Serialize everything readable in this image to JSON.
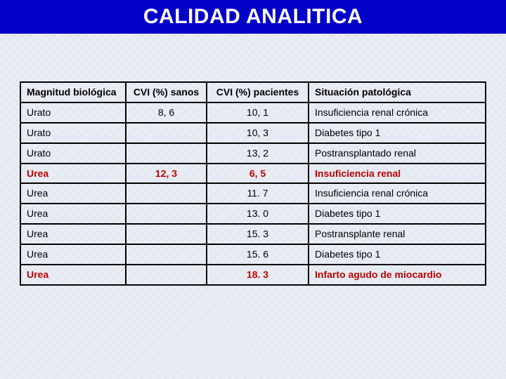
{
  "title": "CALIDAD ANALITICA",
  "table": {
    "columns": [
      "Magnitud biológica",
      "CVI (%)  sanos",
      "CVI (%) pacientes",
      "Situación patológica"
    ],
    "rows": [
      {
        "magnitud": "Urato",
        "sanos": "8, 6",
        "pacientes": "10, 1",
        "situacion": "Insuficiencia renal crónica",
        "highlight": false
      },
      {
        "magnitud": "Urato",
        "sanos": "",
        "pacientes": "10, 3",
        "situacion": "Diabetes tipo 1",
        "highlight": false
      },
      {
        "magnitud": "Urato",
        "sanos": "",
        "pacientes": "13, 2",
        "situacion": "Postransplantado renal",
        "highlight": false
      },
      {
        "magnitud": "Urea",
        "sanos": "12, 3",
        "pacientes": "6, 5",
        "situacion": "Insuficiencia renal",
        "highlight": true
      },
      {
        "magnitud": "Urea",
        "sanos": "",
        "pacientes": "11. 7",
        "situacion": "Insuficiencia renal crónica",
        "highlight": false
      },
      {
        "magnitud": "Urea",
        "sanos": "",
        "pacientes": "13. 0",
        "situacion": "Diabetes tipo 1",
        "highlight": false
      },
      {
        "magnitud": "Urea",
        "sanos": "",
        "pacientes": "15. 3",
        "situacion": "Postransplante renal",
        "highlight": false
      },
      {
        "magnitud": "Urea",
        "sanos": "",
        "pacientes": "15. 6",
        "situacion": "Diabetes tipo 1",
        "highlight": false
      },
      {
        "magnitud": "Urea",
        "sanos": "",
        "pacientes": "18. 3",
        "situacion": "Infarto agudo de miocardio",
        "highlight": true
      }
    ],
    "colors": {
      "highlight_text": "#c00000",
      "text": "#000000",
      "border": "#000000",
      "title_bg": "#0000c8",
      "title_text": "#ffffff",
      "page_bg": "#e8ecf4"
    },
    "font_sizes": {
      "title": 30,
      "cell": 14
    }
  }
}
